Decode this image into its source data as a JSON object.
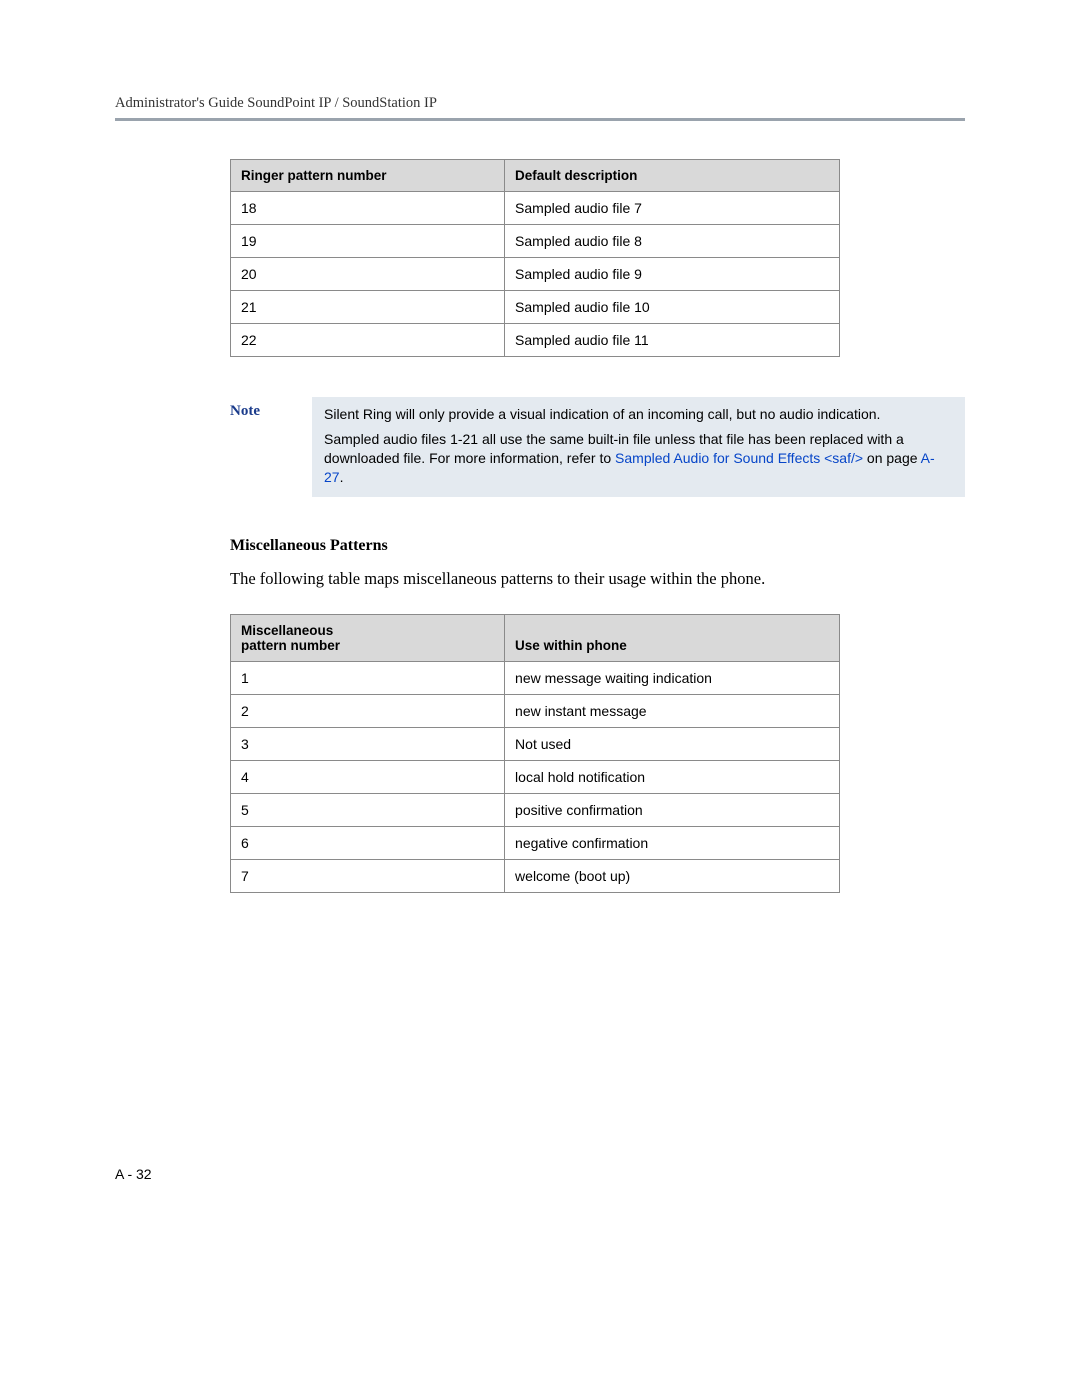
{
  "header": {
    "title": "Administrator's Guide SoundPoint IP / SoundStation IP"
  },
  "table1": {
    "columns": [
      "Ringer pattern number",
      "Default description"
    ],
    "rows": [
      [
        "18",
        "Sampled audio file 7"
      ],
      [
        "19",
        "Sampled audio file 8"
      ],
      [
        "20",
        "Sampled audio file 9"
      ],
      [
        "21",
        "Sampled audio file 10"
      ],
      [
        "22",
        "Sampled audio file 11"
      ]
    ]
  },
  "note": {
    "label": "Note",
    "p1": "Silent Ring will only provide a visual indication of an incoming call, but no audio indication.",
    "p2_a": "Sampled audio files 1-21 all use the same built-in file unless that file has been replaced with a downloaded file. For more information, refer to ",
    "p2_link1": "Sampled Audio for Sound Effects <saf/>",
    "p2_b": " on page ",
    "p2_link2": "A-27",
    "p2_c": "."
  },
  "section": {
    "heading": "Miscellaneous Patterns",
    "body": "The following table maps miscellaneous patterns to their usage within the phone."
  },
  "table2": {
    "col1_line1": "Miscellaneous",
    "col1_line2": "pattern number",
    "col2": "Use within phone",
    "rows": [
      [
        "1",
        "new message waiting indication"
      ],
      [
        "2",
        "new instant message"
      ],
      [
        "3",
        "Not used"
      ],
      [
        "4",
        "local hold notification"
      ],
      [
        "5",
        "positive confirmation"
      ],
      [
        "6",
        "negative confirmation"
      ],
      [
        "7",
        "welcome (boot up)"
      ]
    ]
  },
  "pageNumber": "A - 32"
}
